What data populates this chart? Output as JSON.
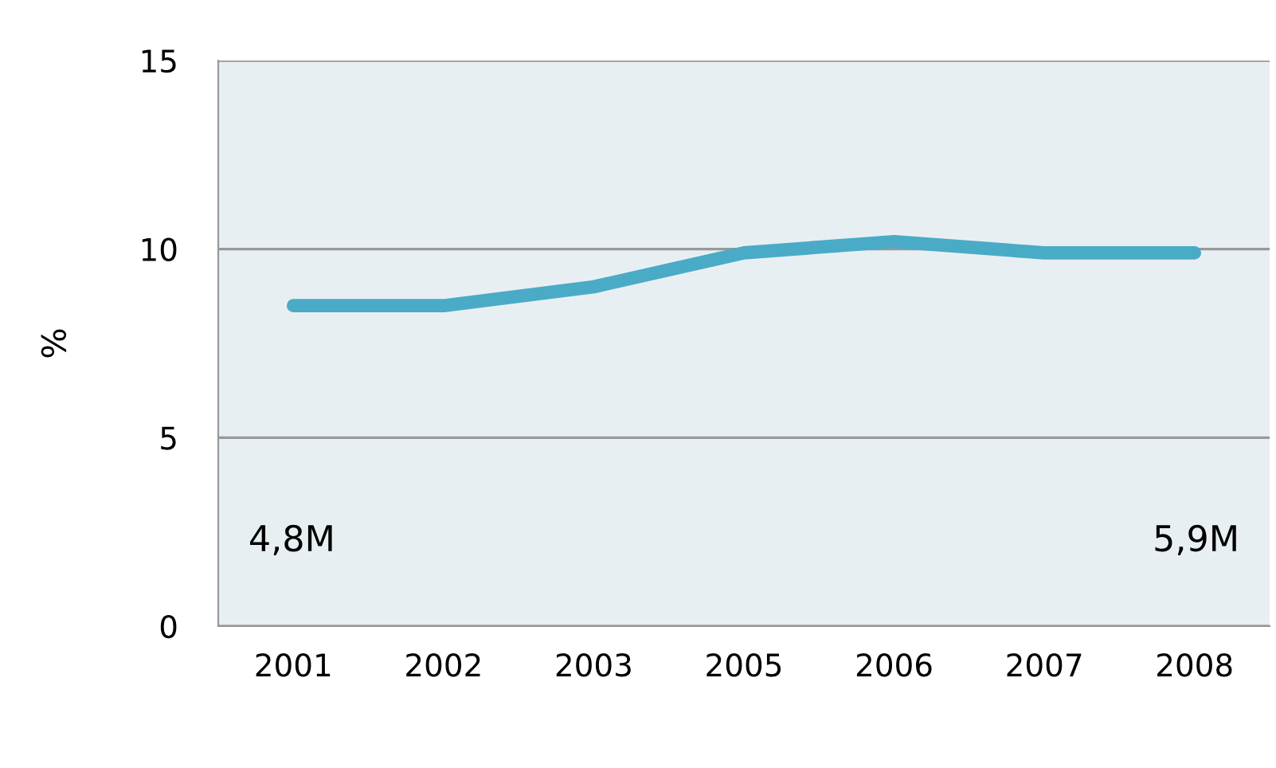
{
  "chart_data": {
    "type": "line",
    "ylabel": "%",
    "categories": [
      "2001",
      "2002",
      "2003",
      "2005",
      "2006",
      "2007",
      "2008"
    ],
    "series": [
      {
        "color": "#4aabc6",
        "values": [
          8.5,
          8.5,
          9.0,
          9.9,
          10.2,
          9.9,
          9.9
        ]
      }
    ],
    "ylim": [
      0,
      15
    ],
    "yticks": [
      0,
      5,
      10,
      15
    ],
    "grid": "y",
    "marker": "none",
    "line_style": "solid",
    "annotations": [
      "4,8M",
      "5,9M"
    ]
  }
}
